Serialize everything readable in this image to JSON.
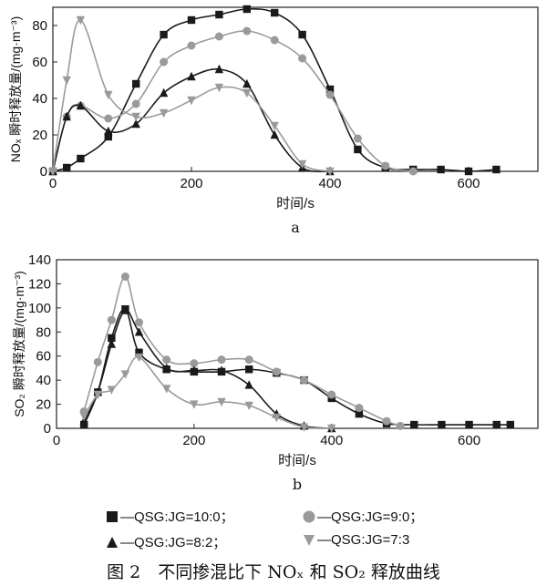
{
  "figure_caption": "图 2　不同掺混比下 NOₓ 和 SO₂ 释放曲线",
  "legend": [
    {
      "label": "—QSG:JG=10:0；",
      "color": "#1a1a1a",
      "marker": "square"
    },
    {
      "label": "—QSG:JG=9:0；",
      "color": "#9a9a9a",
      "marker": "circle"
    },
    {
      "label": "—QSG:JG=8:2；",
      "color": "#1a1a1a",
      "marker": "triangle-up"
    },
    {
      "label": "—QSG:JG=7:3",
      "color": "#9a9a9a",
      "marker": "triangle-down"
    }
  ],
  "chart_data": [
    {
      "type": "line",
      "panel_label": "a",
      "xlabel": "时间/s",
      "ylabel": "NOₓ 瞬时释放量/(mg·m⁻³)",
      "xlim": [
        0,
        700
      ],
      "ylim": [
        0,
        90
      ],
      "xticks": [
        0,
        200,
        400,
        600
      ],
      "yticks": [
        0,
        20,
        40,
        60,
        80
      ],
      "grid": false,
      "series": [
        {
          "name": "QSG:JG=10:0",
          "marker": "square",
          "color": "#1a1a1a",
          "x": [
            0,
            20,
            40,
            80,
            120,
            160,
            200,
            240,
            280,
            320,
            360,
            400,
            440,
            480,
            520,
            560,
            600,
            640
          ],
          "y": [
            0,
            2,
            7,
            19,
            48,
            75,
            83,
            86,
            89,
            87,
            75,
            45,
            12,
            2,
            1,
            1,
            0,
            1
          ]
        },
        {
          "name": "QSG:JG=9:0",
          "marker": "circle",
          "color": "#9a9a9a",
          "x": [
            0,
            20,
            40,
            80,
            120,
            160,
            200,
            240,
            280,
            320,
            360,
            400,
            440,
            480,
            520
          ],
          "y": [
            0,
            30,
            36,
            29,
            37,
            60,
            69,
            74,
            77,
            72,
            62,
            42,
            18,
            3,
            0
          ]
        },
        {
          "name": "QSG:JG=8:2",
          "marker": "triangle-up",
          "color": "#1a1a1a",
          "x": [
            0,
            20,
            40,
            80,
            120,
            160,
            200,
            240,
            280,
            320,
            360,
            400
          ],
          "y": [
            0,
            30,
            36,
            22,
            26,
            43,
            52,
            56,
            48,
            20,
            2,
            0
          ]
        },
        {
          "name": "QSG:JG=7:3",
          "marker": "triangle-down",
          "color": "#9a9a9a",
          "x": [
            0,
            20,
            40,
            80,
            120,
            160,
            200,
            240,
            280,
            320,
            360,
            400
          ],
          "y": [
            0,
            50,
            83,
            42,
            30,
            32,
            39,
            46,
            43,
            25,
            4,
            0
          ]
        }
      ]
    },
    {
      "type": "line",
      "panel_label": "b",
      "xlabel": "时间/s",
      "ylabel": "SO₂ 瞬时释放量/(mg·m⁻³)",
      "xlim": [
        0,
        700
      ],
      "ylim": [
        0,
        140
      ],
      "xticks": [
        0,
        200,
        400,
        600
      ],
      "yticks": [
        0,
        20,
        40,
        60,
        80,
        100,
        120,
        140
      ],
      "grid": false,
      "series": [
        {
          "name": "QSG:JG=10:0",
          "marker": "square",
          "color": "#1a1a1a",
          "x": [
            40,
            60,
            80,
            100,
            120,
            160,
            200,
            240,
            280,
            320,
            360,
            400,
            440,
            480,
            520,
            560,
            600,
            640,
            660
          ],
          "y": [
            3,
            30,
            75,
            99,
            63,
            49,
            47,
            47,
            49,
            46,
            40,
            25,
            12,
            4,
            3,
            3,
            3,
            3,
            3
          ]
        },
        {
          "name": "QSG:JG=9:0",
          "marker": "circle",
          "color": "#9a9a9a",
          "x": [
            40,
            60,
            80,
            100,
            120,
            160,
            200,
            240,
            280,
            320,
            360,
            400,
            440,
            480,
            500
          ],
          "y": [
            14,
            55,
            90,
            126,
            88,
            57,
            54,
            57,
            57,
            47,
            40,
            28,
            17,
            6,
            2
          ]
        },
        {
          "name": "QSG:JG=8:2",
          "marker": "triangle-up",
          "color": "#1a1a1a",
          "x": [
            40,
            60,
            80,
            100,
            120,
            160,
            200,
            240,
            280,
            320,
            360,
            400
          ],
          "y": [
            6,
            30,
            70,
            98,
            80,
            50,
            48,
            48,
            36,
            12,
            2,
            0
          ]
        },
        {
          "name": "QSG:JG=7:3",
          "marker": "triangle-down",
          "color": "#9a9a9a",
          "x": [
            40,
            60,
            80,
            100,
            120,
            160,
            200,
            240,
            280,
            320,
            360,
            400
          ],
          "y": [
            10,
            28,
            32,
            45,
            59,
            33,
            20,
            22,
            19,
            9,
            1,
            0
          ]
        }
      ]
    }
  ]
}
